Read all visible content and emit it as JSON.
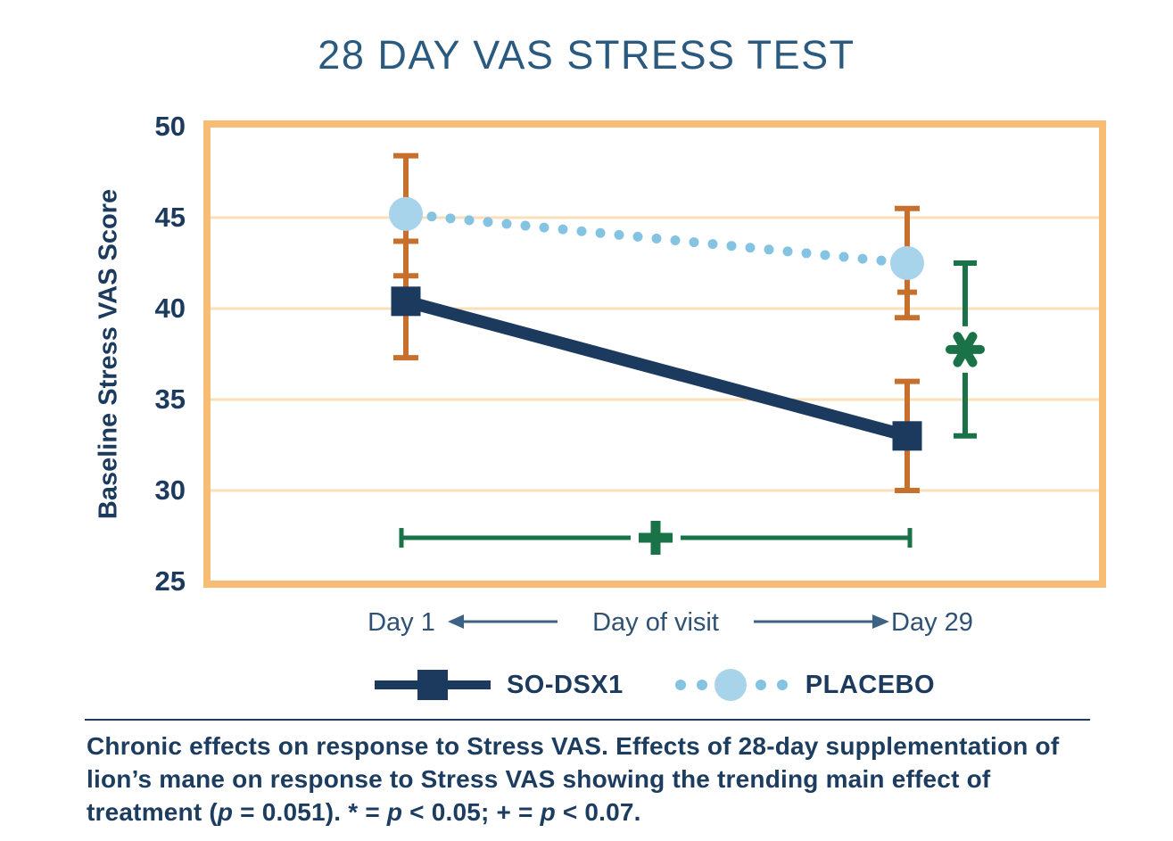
{
  "title": "28 DAY VAS STRESS TEST",
  "colors": {
    "navy": "#1B3A5E",
    "title_text": "#2A5A7F",
    "axis_text": "#1B3A5E",
    "x_label_text": "#2E5174",
    "box_border": "#F7BD74",
    "gridline": "#FADFB8",
    "error_bar": "#C7702D",
    "significance_green": "#1A7248",
    "caption_text": "#1C3C60",
    "divider": "#1E3D5F"
  },
  "chart_data": {
    "type": "line",
    "title": "28 DAY VAS STRESS TEST",
    "ylabel": "Baseline Stress VAS Score",
    "xlabel": "Day of visit",
    "x_categories": [
      "Day 1",
      "Day 29"
    ],
    "ylim": [
      25,
      50
    ],
    "yticks": [
      25,
      30,
      35,
      40,
      45,
      50
    ],
    "grid": "horizontal",
    "legend_position": "bottom",
    "error_bar_color": "#C7702D",
    "series": [
      {
        "name": "SO-DSX1",
        "line_style": "solid",
        "marker": "square",
        "color": "#1B3A5E",
        "values": [
          40.4,
          33.0
        ],
        "error_low": [
          37.3,
          30.0
        ],
        "error_high": [
          43.7,
          36.0
        ]
      },
      {
        "name": "PLACEBO",
        "line_style": "dotted",
        "marker": "circle",
        "color": "#A7D4EA",
        "dot_color": "#85C3E3",
        "values": [
          45.2,
          42.5
        ],
        "error_low": [
          41.8,
          39.5
        ],
        "error_high": [
          48.4,
          45.5
        ],
        "extra_inner_cap": {
          "point_index": 1,
          "value": 40.9
        }
      }
    ],
    "annotations": [
      {
        "id": "sig-star",
        "symbol": "*",
        "meaning": "p < 0.05",
        "orientation": "vertical",
        "at_x": "Day 29",
        "from_value": 42.5,
        "to_value": 33.0,
        "color": "#1A7248"
      },
      {
        "id": "sig-plus",
        "symbol": "+",
        "meaning": "p < 0.07",
        "orientation": "horizontal",
        "from_x": "Day 1",
        "to_x": "Day 29",
        "at_value": 27.4,
        "color": "#1A7248"
      }
    ]
  },
  "caption": {
    "segments": [
      {
        "text": "Chronic effects on response to Stress VAS. Effects of 28-day supplementation of lion’s mane on response to Stress VAS showing the trending main effect of treatment (",
        "italic": false
      },
      {
        "text": "p",
        "italic": true
      },
      {
        "text": " = 0.051). * = ",
        "italic": false
      },
      {
        "text": "p",
        "italic": true
      },
      {
        "text": " < 0.05; + = ",
        "italic": false
      },
      {
        "text": "p",
        "italic": true
      },
      {
        "text": " < 0.07.",
        "italic": false
      }
    ]
  }
}
